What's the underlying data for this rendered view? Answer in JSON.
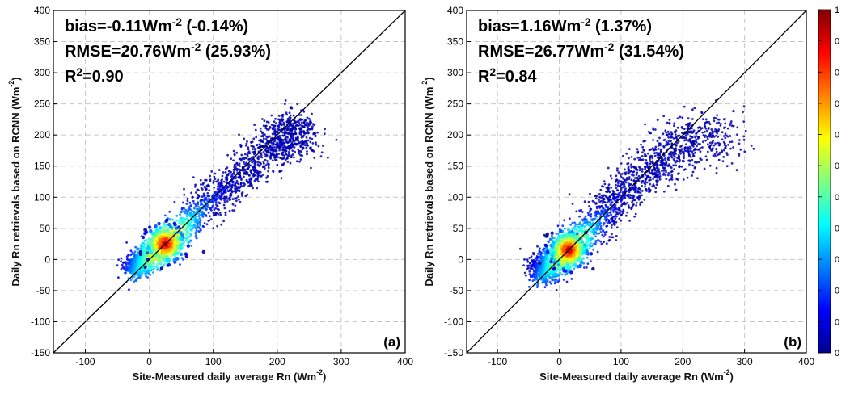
{
  "chart_data": [
    {
      "type": "scatter",
      "panel_label": "(a)",
      "xlabel": "Site-Measured daily average Rn (Wm",
      "xlabel_sup": "-2",
      "xlabel_end": ")",
      "ylabel": "Daily Rn retrievals based on RCNN (Wm",
      "ylabel_sup": "-2",
      "ylabel_end": ")",
      "xlim": [
        -150,
        400
      ],
      "ylim": [
        -150,
        400
      ],
      "x_ticks": [
        "-100",
        "0",
        "100",
        "200",
        "300",
        "400"
      ],
      "y_ticks": [
        "-150",
        "-100",
        "-50",
        "0",
        "50",
        "100",
        "150",
        "200",
        "250",
        "300",
        "350",
        "400"
      ],
      "grid": true,
      "one_to_one_line": true,
      "stats": {
        "bias_text": "bias=-0.11Wm",
        "bias_sup": "-2",
        "bias_tail": " (-0.14%)",
        "rmse_text": "RMSE=20.76Wm",
        "rmse_sup": "-2",
        "rmse_tail": " (25.93%)",
        "r2_base": "R",
        "r2_sup": "2",
        "r2_tail": "=0.90"
      },
      "bias": -0.11,
      "rmse": 20.76,
      "r2": 0.9,
      "density_cloud": {
        "ridge": [
          [
            -25,
            -15
          ],
          [
            0,
            5
          ],
          [
            30,
            28
          ],
          [
            80,
            78
          ],
          [
            130,
            125
          ],
          [
            180,
            170
          ],
          [
            215,
            200
          ],
          [
            240,
            205
          ]
        ],
        "peak": [
          25,
          25
        ]
      }
    },
    {
      "type": "scatter",
      "panel_label": "(b)",
      "xlabel": "Site-Measured daily average Rn (Wm",
      "xlabel_sup": "-2",
      "xlabel_end": ")",
      "ylabel": "Daily Rn retrievals based on RCNN (Wm",
      "ylabel_sup": "-2",
      "ylabel_end": ")",
      "xlim": [
        -150,
        400
      ],
      "ylim": [
        -150,
        400
      ],
      "x_ticks": [
        "-100",
        "0",
        "100",
        "200",
        "300",
        "400"
      ],
      "y_ticks": [
        "-150",
        "-100",
        "-50",
        "0",
        "50",
        "100",
        "150",
        "200",
        "250",
        "300",
        "350",
        "400"
      ],
      "grid": true,
      "one_to_one_line": true,
      "stats": {
        "bias_text": "bias=1.16Wm",
        "bias_sup": "-2",
        "bias_tail": " (1.37%)",
        "rmse_text": "RMSE=26.77Wm",
        "rmse_sup": "-2",
        "rmse_tail": " (31.54%)",
        "r2_base": "R",
        "r2_sup": "2",
        "r2_tail": "=0.84"
      },
      "bias": 1.16,
      "rmse": 26.77,
      "r2": 0.84,
      "density_cloud": {
        "ridge": [
          [
            -30,
            -20
          ],
          [
            0,
            5
          ],
          [
            20,
            18
          ],
          [
            70,
            70
          ],
          [
            120,
            120
          ],
          [
            170,
            165
          ],
          [
            215,
            195
          ],
          [
            275,
            200
          ]
        ],
        "peak": [
          15,
          15
        ]
      }
    }
  ],
  "colorbar": {
    "ticks": [
      "1",
      "0",
      "0",
      "0",
      "0",
      "0",
      "0",
      "0",
      "0",
      "0",
      "0",
      "0"
    ],
    "colors": [
      "#00008f",
      "#0000ff",
      "#0080ff",
      "#00ffff",
      "#80ff80",
      "#ffff00",
      "#ff8000",
      "#ff0000",
      "#800000"
    ]
  }
}
